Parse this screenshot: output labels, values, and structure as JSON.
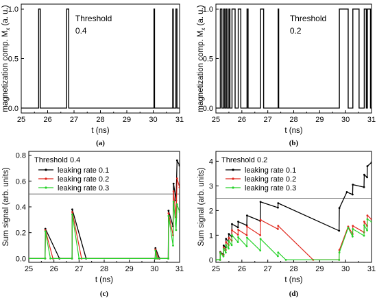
{
  "chart_data": [
    {
      "id": "a",
      "type": "line",
      "panel_label": "(a)",
      "xlabel": "t (ns)",
      "ylabel": "magnetization comp. M",
      "ylabel_sub": "x",
      "ylabel_unit": " (a. u.)",
      "xlim": [
        25,
        31
      ],
      "ylim": [
        -0.05,
        1.05
      ],
      "xticks": [
        25,
        26,
        27,
        28,
        29,
        30,
        31
      ],
      "xtick_labels": [
        "25",
        "26",
        "27",
        "28",
        "29",
        "30",
        "31"
      ],
      "yticks": [
        0.0,
        0.5,
        1.0
      ],
      "ytick_labels": [
        "0.0",
        "0.5",
        "1.0"
      ],
      "annotation": [
        "Threshold",
        "0.4"
      ],
      "pulses": [
        [
          25.66,
          25.72
        ],
        [
          26.72,
          26.8
        ],
        [
          30.03,
          30.05
        ],
        [
          30.74,
          30.76
        ],
        [
          30.86,
          30.9
        ]
      ],
      "series": [
        {
          "values_desc": "binary 0/1 pulse train",
          "color": "#000000"
        }
      ]
    },
    {
      "id": "b",
      "type": "line",
      "panel_label": "(b)",
      "xlabel": "t (ns)",
      "ylabel": "magnetization comp. M",
      "ylabel_sub": "x",
      "ylabel_unit": " (a. u.)",
      "xlim": [
        25,
        31
      ],
      "ylim": [
        -0.05,
        1.05
      ],
      "xticks": [
        25,
        26,
        27,
        28,
        29,
        30,
        31
      ],
      "xtick_labels": [
        "25",
        "26",
        "27",
        "28",
        "29",
        "30",
        "31"
      ],
      "yticks": [
        0.0,
        0.5,
        1.0
      ],
      "ytick_labels": [
        "0.0",
        "0.5",
        "1.0"
      ],
      "annotation": [
        "Threshold",
        "0.2"
      ],
      "pulses": [
        [
          25.17,
          25.23
        ],
        [
          25.3,
          25.34
        ],
        [
          25.39,
          25.43
        ],
        [
          25.5,
          25.54
        ],
        [
          25.62,
          25.74
        ],
        [
          25.86,
          25.96
        ],
        [
          26.2,
          26.24
        ],
        [
          26.72,
          26.84
        ],
        [
          27.4,
          27.42
        ],
        [
          29.76,
          30.1
        ],
        [
          30.28,
          30.52
        ],
        [
          30.72,
          30.8
        ],
        [
          30.84,
          30.96
        ]
      ],
      "series": [
        {
          "values_desc": "binary 0/1 pulse train",
          "color": "#000000"
        }
      ]
    },
    {
      "id": "c",
      "type": "line",
      "panel_label": "(c)",
      "xlabel": "t (ns)",
      "ylabel": "Sum signal (arb. units)",
      "xlim": [
        25,
        31
      ],
      "ylim": [
        -0.03,
        0.83
      ],
      "xticks": [
        25,
        26,
        27,
        28,
        29,
        30,
        31
      ],
      "xtick_labels": [
        "25",
        "26",
        "27",
        "28",
        "29",
        "30",
        "31"
      ],
      "yticks": [
        0.0,
        0.2,
        0.4,
        0.6,
        0.8
      ],
      "ytick_labels": [
        "0.0",
        "0.2",
        "0.4",
        "0.6",
        "0.8"
      ],
      "threshold_line": 0.5,
      "legend": {
        "title": "Threshold 0.4",
        "placement": "top-left"
      },
      "series": [
        {
          "name": "leaking rate 0.1",
          "color": "#000000",
          "rate": 0.1,
          "points": [
            [
              25,
              0
            ],
            [
              25.65,
              0
            ],
            [
              25.66,
              0.23
            ],
            [
              26.22,
              0
            ],
            [
              26.72,
              0
            ],
            [
              26.73,
              0.38
            ],
            [
              27.28,
              0
            ],
            [
              30.03,
              0
            ],
            [
              30.04,
              0.08
            ],
            [
              30.2,
              0
            ],
            [
              30.55,
              0
            ],
            [
              30.56,
              0.37
            ],
            [
              30.74,
              0.25
            ],
            [
              30.76,
              0.58
            ],
            [
              30.86,
              0.45
            ],
            [
              30.9,
              0.76
            ],
            [
              31,
              0.72
            ]
          ]
        },
        {
          "name": "leaking rate 0.2",
          "color": "#e0281e",
          "rate": 0.2,
          "points": [
            [
              25,
              0
            ],
            [
              25.65,
              0
            ],
            [
              25.66,
              0.22
            ],
            [
              25.96,
              0
            ],
            [
              26.72,
              0
            ],
            [
              26.73,
              0.36
            ],
            [
              27.1,
              0
            ],
            [
              30.03,
              0
            ],
            [
              30.04,
              0.07
            ],
            [
              30.14,
              0
            ],
            [
              30.55,
              0
            ],
            [
              30.56,
              0.35
            ],
            [
              30.74,
              0.18
            ],
            [
              30.76,
              0.52
            ],
            [
              30.86,
              0.32
            ],
            [
              30.9,
              0.62
            ],
            [
              31,
              0.55
            ]
          ]
        },
        {
          "name": "leaking rate 0.3",
          "color": "#27d22a",
          "rate": 0.3,
          "points": [
            [
              25,
              0
            ],
            [
              25.65,
              0
            ],
            [
              25.66,
              0.21
            ],
            [
              25.86,
              0
            ],
            [
              26.72,
              0
            ],
            [
              26.73,
              0.34
            ],
            [
              27.0,
              0
            ],
            [
              30.03,
              0
            ],
            [
              30.04,
              0.06
            ],
            [
              30.1,
              0
            ],
            [
              30.55,
              0
            ],
            [
              30.56,
              0.33
            ],
            [
              30.74,
              0.1
            ],
            [
              30.76,
              0.44
            ],
            [
              30.86,
              0.22
            ],
            [
              30.9,
              0.42
            ],
            [
              31,
              0.36
            ]
          ]
        }
      ]
    },
    {
      "id": "d",
      "type": "line",
      "panel_label": "(d)",
      "xlabel": "t (ns)",
      "ylabel": "Sum signal (arb. units)",
      "xlim": [
        25,
        31
      ],
      "ylim": [
        -0.1,
        4.4
      ],
      "xticks": [
        25,
        26,
        27,
        28,
        29,
        30,
        31
      ],
      "xtick_labels": [
        "25",
        "26",
        "27",
        "28",
        "29",
        "30",
        "31"
      ],
      "yticks": [
        0,
        1,
        2,
        3,
        4
      ],
      "ytick_labels": [
        "0",
        "1",
        "2",
        "3",
        "4"
      ],
      "threshold_line": 2.5,
      "legend": {
        "title": "Threshold 0.2",
        "placement": "top-left"
      },
      "series": [
        {
          "name": "leaking rate 0.1",
          "color": "#000000",
          "rate": 0.1,
          "points": [
            [
              25,
              0
            ],
            [
              25.16,
              0
            ],
            [
              25.17,
              0.32
            ],
            [
              25.29,
              0.22
            ],
            [
              25.3,
              0.58
            ],
            [
              25.38,
              0.5
            ],
            [
              25.39,
              0.85
            ],
            [
              25.49,
              0.75
            ],
            [
              25.5,
              1.05
            ],
            [
              25.61,
              0.95
            ],
            [
              25.62,
              1.45
            ],
            [
              25.85,
              1.32
            ],
            [
              25.86,
              1.55
            ],
            [
              26.19,
              1.4
            ],
            [
              26.2,
              1.8
            ],
            [
              26.71,
              1.58
            ],
            [
              26.72,
              2.35
            ],
            [
              27.39,
              2.12
            ],
            [
              27.4,
              2.3
            ],
            [
              29.75,
              1.18
            ],
            [
              29.76,
              2.1
            ],
            [
              30.05,
              2.75
            ],
            [
              30.27,
              2.65
            ],
            [
              30.28,
              3.05
            ],
            [
              30.71,
              2.95
            ],
            [
              30.72,
              3.45
            ],
            [
              30.83,
              3.35
            ],
            [
              30.84,
              3.8
            ],
            [
              31,
              3.95
            ]
          ]
        },
        {
          "name": "leaking rate 0.2",
          "color": "#e0281e",
          "rate": 0.2,
          "points": [
            [
              25,
              0
            ],
            [
              25.16,
              0
            ],
            [
              25.17,
              0.3
            ],
            [
              25.29,
              0.18
            ],
            [
              25.3,
              0.5
            ],
            [
              25.38,
              0.4
            ],
            [
              25.39,
              0.72
            ],
            [
              25.49,
              0.6
            ],
            [
              25.5,
              0.9
            ],
            [
              25.61,
              0.78
            ],
            [
              25.62,
              1.2
            ],
            [
              25.85,
              1.02
            ],
            [
              25.86,
              1.22
            ],
            [
              26.19,
              1.0
            ],
            [
              26.2,
              1.35
            ],
            [
              26.71,
              1.0
            ],
            [
              26.72,
              1.62
            ],
            [
              27.39,
              1.25
            ],
            [
              27.4,
              1.38
            ],
            [
              28.75,
              0
            ],
            [
              29.75,
              0
            ],
            [
              29.76,
              0.4
            ],
            [
              30.1,
              1.35
            ],
            [
              30.27,
              1.05
            ],
            [
              30.28,
              1.38
            ],
            [
              30.71,
              1.12
            ],
            [
              30.72,
              1.55
            ],
            [
              30.83,
              1.38
            ],
            [
              30.84,
              1.8
            ],
            [
              31,
              1.65
            ]
          ]
        },
        {
          "name": "leaking rate 0.3",
          "color": "#27d22a",
          "rate": 0.3,
          "points": [
            [
              25,
              0
            ],
            [
              25.16,
              0
            ],
            [
              25.17,
              0.28
            ],
            [
              25.29,
              0.14
            ],
            [
              25.3,
              0.44
            ],
            [
              25.38,
              0.3
            ],
            [
              25.39,
              0.6
            ],
            [
              25.49,
              0.46
            ],
            [
              25.5,
              0.76
            ],
            [
              25.61,
              0.6
            ],
            [
              25.62,
              1.0
            ],
            [
              25.85,
              0.72
            ],
            [
              25.86,
              0.92
            ],
            [
              26.19,
              0.55
            ],
            [
              26.2,
              0.9
            ],
            [
              26.71,
              0.38
            ],
            [
              26.72,
              0.85
            ],
            [
              27.39,
              0.15
            ],
            [
              27.4,
              0.3
            ],
            [
              27.7,
              0
            ],
            [
              29.75,
              0
            ],
            [
              29.76,
              0.3
            ],
            [
              30.1,
              1.3
            ],
            [
              30.27,
              0.95
            ],
            [
              30.28,
              1.25
            ],
            [
              30.71,
              0.98
            ],
            [
              30.72,
              1.4
            ],
            [
              30.83,
              1.2
            ],
            [
              30.84,
              1.65
            ],
            [
              31,
              1.55
            ]
          ]
        }
      ]
    }
  ]
}
